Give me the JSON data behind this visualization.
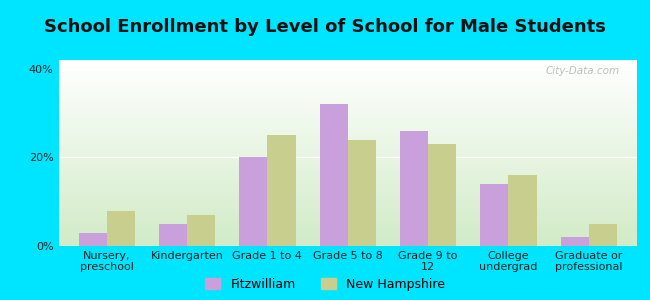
{
  "title": "School Enrollment by Level of School for Male Students",
  "categories": [
    "Nursery,\npreschool",
    "Kindergarten",
    "Grade 1 to 4",
    "Grade 5 to 8",
    "Grade 9 to\n12",
    "College\nundergrad",
    "Graduate or\nprofessional"
  ],
  "fitzwilliam": [
    3,
    5,
    20,
    32,
    26,
    14,
    2
  ],
  "new_hampshire": [
    8,
    7,
    25,
    24,
    23,
    16,
    5
  ],
  "fitzwilliam_color": "#c9a0dc",
  "new_hampshire_color": "#c8cf8e",
  "background_color": "#00e5ff",
  "ylim": [
    0,
    42
  ],
  "yticks": [
    0,
    20,
    40
  ],
  "ytick_labels": [
    "0%",
    "20%",
    "40%"
  ],
  "legend_fitzwilliam": "Fitzwilliam",
  "legend_new_hampshire": "New Hampshire",
  "bar_width": 0.35,
  "title_fontsize": 13,
  "tick_fontsize": 8,
  "legend_fontsize": 9
}
